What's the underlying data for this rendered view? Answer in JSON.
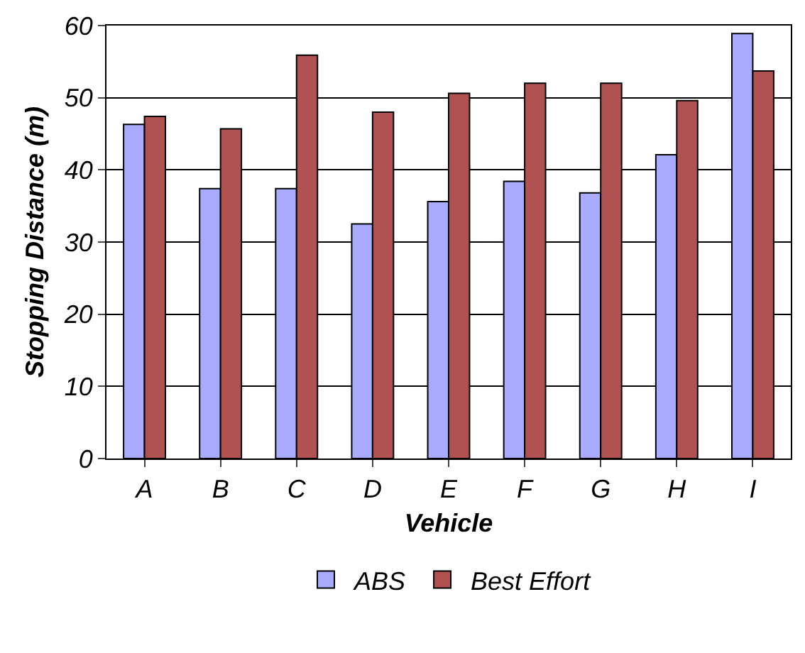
{
  "chart_data": {
    "type": "bar",
    "xlabel": "Vehicle",
    "ylabel": "Stopping Distance (m)",
    "categories": [
      "A",
      "B",
      "C",
      "D",
      "E",
      "F",
      "G",
      "H",
      "I"
    ],
    "series": [
      {
        "name": "ABS",
        "color": "#aaaaff",
        "values": [
          46.3,
          37.4,
          37.4,
          32.5,
          35.6,
          38.4,
          36.8,
          42.1,
          58.9
        ]
      },
      {
        "name": "Best Effort",
        "color": "#b05252",
        "values": [
          47.4,
          45.7,
          55.9,
          48.0,
          50.6,
          52.0,
          52.0,
          49.6,
          53.7
        ]
      }
    ],
    "ylim": [
      0,
      60
    ],
    "yticks": [
      0,
      10,
      20,
      30,
      40,
      50,
      60
    ],
    "grid": "y",
    "legend": "bottom"
  }
}
